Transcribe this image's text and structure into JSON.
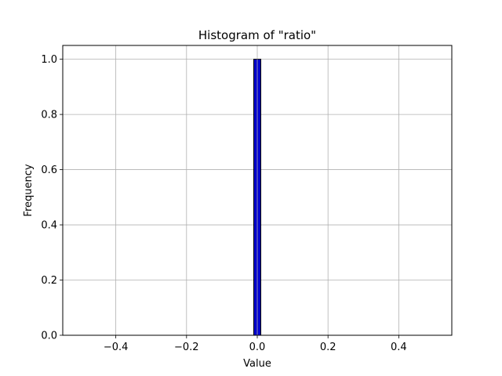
{
  "chart_data": {
    "type": "bar",
    "title": "Histogram of \"ratio\"",
    "xlabel": "Value",
    "ylabel": "Frequency",
    "xlim": [
      -0.55,
      0.55
    ],
    "ylim": [
      0,
      1.05
    ],
    "x_ticks": [
      -0.4,
      -0.2,
      0.0,
      0.2,
      0.4
    ],
    "x_tick_labels": [
      "−0.4",
      "−0.2",
      "0.0",
      "0.2",
      "0.4"
    ],
    "y_ticks": [
      0.0,
      0.2,
      0.4,
      0.6,
      0.8,
      1.0
    ],
    "y_tick_labels": [
      "0.0",
      "0.2",
      "0.4",
      "0.6",
      "0.8",
      "1.0"
    ],
    "grid": true,
    "bins": [
      {
        "x_start": -0.5,
        "x_end": 0.5,
        "value": 0,
        "note_zero_bins": true
      },
      {
        "x_start": -0.01,
        "x_end": 0.01,
        "value": 1
      }
    ],
    "bar_color": "#0000cc",
    "edge_color": "#000000"
  }
}
